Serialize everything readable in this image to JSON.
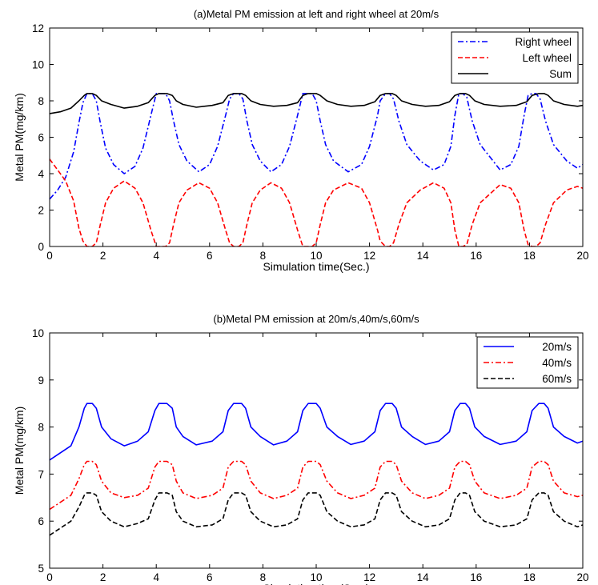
{
  "chart_data": [
    {
      "type": "line",
      "title": "(a)Metal PM emission at left and right wheel at 20m/s",
      "xlabel": "Simulation time(Sec.)",
      "ylabel": "Metal PM(mg/km)",
      "xlim": [
        0,
        20
      ],
      "ylim": [
        0,
        12
      ],
      "xticks": [
        0,
        2,
        4,
        6,
        8,
        10,
        12,
        14,
        16,
        18,
        20
      ],
      "yticks": [
        0,
        2,
        4,
        6,
        8,
        10,
        12
      ],
      "grid": false,
      "legend_position": "top-right",
      "period": 2.75,
      "series": [
        {
          "name": "Right wheel",
          "color": "#0000ff",
          "style": "dash-dot",
          "x": [
            0,
            0.3,
            0.6,
            0.9,
            1.1,
            1.25,
            1.4,
            1.6,
            1.75,
            1.9,
            2.1,
            2.4,
            2.8,
            3.2,
            3.5,
            3.8,
            4.0,
            4.15,
            4.35,
            4.5,
            4.65,
            4.85,
            5.15,
            5.6,
            6.0,
            6.3,
            6.6,
            6.75,
            6.9,
            7.1,
            7.25,
            7.4,
            7.6,
            7.9,
            8.3,
            8.7,
            9.0,
            9.3,
            9.5,
            9.65,
            9.85,
            10.0,
            10.15,
            10.35,
            10.65,
            11.2,
            11.7,
            12.0,
            12.3,
            12.4,
            12.6,
            12.75,
            12.9,
            13.1,
            13.4,
            13.9,
            14.4,
            14.8,
            15.05,
            15.2,
            15.35,
            15.5,
            15.65,
            15.85,
            16.15,
            16.9,
            17.3,
            17.6,
            17.8,
            17.95,
            18.1,
            18.25,
            18.4,
            18.6,
            18.9,
            19.4,
            19.8,
            20.0
          ],
          "y": [
            2.6,
            3.1,
            3.8,
            5.2,
            6.8,
            7.9,
            8.4,
            8.4,
            8.0,
            6.8,
            5.4,
            4.5,
            4.0,
            4.4,
            5.4,
            7.2,
            8.4,
            8.4,
            8.4,
            8.0,
            6.9,
            5.6,
            4.7,
            4.1,
            4.5,
            5.5,
            7.2,
            8.1,
            8.4,
            8.4,
            8.1,
            6.9,
            5.6,
            4.7,
            4.1,
            4.5,
            5.5,
            7.2,
            8.4,
            8.4,
            8.4,
            8.0,
            6.9,
            5.6,
            4.7,
            4.1,
            4.5,
            5.5,
            7.2,
            8.0,
            8.4,
            8.4,
            8.1,
            6.9,
            5.6,
            4.7,
            4.2,
            4.5,
            5.5,
            7.2,
            8.4,
            8.4,
            8.2,
            6.9,
            5.6,
            4.2,
            4.5,
            5.5,
            7.2,
            8.3,
            8.4,
            8.4,
            8.1,
            6.9,
            5.6,
            4.7,
            4.3,
            4.5
          ]
        },
        {
          "name": "Left wheel",
          "color": "#ff0000",
          "style": "dashed",
          "x": [
            0,
            0.3,
            0.6,
            0.9,
            1.1,
            1.25,
            1.4,
            1.6,
            1.75,
            1.9,
            2.1,
            2.4,
            2.8,
            3.2,
            3.5,
            3.8,
            4.0,
            4.15,
            4.35,
            4.5,
            4.65,
            4.85,
            5.15,
            5.6,
            6.0,
            6.3,
            6.6,
            6.75,
            6.9,
            7.1,
            7.25,
            7.4,
            7.6,
            7.9,
            8.3,
            8.7,
            9.0,
            9.3,
            9.5,
            9.65,
            9.85,
            10.0,
            10.15,
            10.35,
            10.65,
            11.2,
            11.7,
            12.0,
            12.3,
            12.4,
            12.6,
            12.75,
            12.9,
            13.1,
            13.4,
            13.9,
            14.4,
            14.8,
            15.05,
            15.2,
            15.35,
            15.5,
            15.65,
            15.85,
            16.15,
            16.9,
            17.3,
            17.6,
            17.8,
            17.95,
            18.1,
            18.25,
            18.4,
            18.6,
            18.9,
            19.4,
            19.8,
            20.0
          ],
          "y": [
            4.8,
            4.2,
            3.6,
            2.5,
            1.0,
            0.3,
            0.0,
            0.0,
            0.2,
            1.2,
            2.4,
            3.2,
            3.6,
            3.2,
            2.4,
            0.9,
            0.0,
            0.0,
            0.0,
            0.2,
            1.2,
            2.4,
            3.1,
            3.5,
            3.2,
            2.4,
            0.9,
            0.2,
            0.0,
            0.0,
            0.2,
            1.2,
            2.4,
            3.1,
            3.5,
            3.2,
            2.4,
            0.9,
            0.0,
            0.0,
            0.0,
            0.2,
            1.2,
            2.4,
            3.1,
            3.5,
            3.2,
            2.4,
            0.9,
            0.3,
            0.0,
            0.0,
            0.2,
            1.2,
            2.4,
            3.1,
            3.5,
            3.2,
            2.4,
            0.9,
            0.0,
            0.0,
            0.1,
            1.2,
            2.4,
            3.4,
            3.2,
            2.4,
            0.9,
            0.1,
            0.0,
            0.0,
            0.2,
            1.2,
            2.4,
            3.1,
            3.3,
            3.2
          ]
        },
        {
          "name": "Sum",
          "color": "#000000",
          "style": "solid",
          "x": [
            0,
            0.4,
            0.8,
            1.1,
            1.3,
            1.4,
            1.6,
            1.75,
            1.95,
            2.3,
            2.8,
            3.3,
            3.7,
            3.95,
            4.1,
            4.4,
            4.6,
            4.75,
            5.0,
            5.5,
            6.1,
            6.5,
            6.7,
            6.9,
            7.2,
            7.35,
            7.55,
            7.9,
            8.4,
            8.9,
            9.3,
            9.5,
            9.7,
            10.0,
            10.15,
            10.4,
            10.8,
            11.3,
            11.8,
            12.2,
            12.4,
            12.6,
            12.85,
            13.0,
            13.2,
            13.6,
            14.1,
            14.6,
            15.0,
            15.2,
            15.4,
            15.6,
            15.75,
            15.95,
            16.3,
            16.9,
            17.5,
            17.9,
            18.1,
            18.35,
            18.55,
            18.7,
            18.9,
            19.3,
            19.8,
            20.0
          ],
          "y": [
            7.3,
            7.4,
            7.6,
            8.0,
            8.3,
            8.4,
            8.4,
            8.3,
            8.0,
            7.8,
            7.6,
            7.7,
            7.9,
            8.3,
            8.4,
            8.4,
            8.3,
            8.0,
            7.8,
            7.65,
            7.75,
            7.9,
            8.3,
            8.4,
            8.4,
            8.3,
            8.0,
            7.8,
            7.7,
            7.75,
            7.9,
            8.3,
            8.4,
            8.4,
            8.3,
            8.0,
            7.8,
            7.7,
            7.75,
            7.95,
            8.3,
            8.4,
            8.4,
            8.3,
            8.0,
            7.8,
            7.7,
            7.75,
            7.95,
            8.3,
            8.4,
            8.4,
            8.3,
            8.0,
            7.8,
            7.7,
            7.75,
            7.95,
            8.3,
            8.4,
            8.4,
            8.3,
            8.0,
            7.8,
            7.7,
            7.75
          ]
        }
      ]
    },
    {
      "type": "line",
      "title": "(b)Metal PM emission at 20m/s,40m/s,60m/s",
      "xlabel": "Simulation time(Sec.)",
      "ylabel": "Metal PM(mg/km)",
      "xlim": [
        0,
        20
      ],
      "ylim": [
        5,
        10
      ],
      "xticks": [
        0,
        2,
        4,
        6,
        8,
        10,
        12,
        14,
        16,
        18,
        20
      ],
      "yticks": [
        5,
        6,
        7,
        8,
        9,
        10
      ],
      "grid": false,
      "legend_position": "top-right",
      "series": [
        {
          "name": "20m/s",
          "color": "#0000ff",
          "style": "solid",
          "x": [
            0,
            0.4,
            0.8,
            1.1,
            1.3,
            1.4,
            1.6,
            1.75,
            1.95,
            2.3,
            2.8,
            3.3,
            3.7,
            3.95,
            4.1,
            4.4,
            4.6,
            4.75,
            5.0,
            5.5,
            6.1,
            6.5,
            6.7,
            6.9,
            7.2,
            7.35,
            7.55,
            7.9,
            8.4,
            8.9,
            9.3,
            9.5,
            9.7,
            10.0,
            10.15,
            10.4,
            10.8,
            11.3,
            11.8,
            12.2,
            12.4,
            12.6,
            12.85,
            13.0,
            13.2,
            13.6,
            14.1,
            14.6,
            15.0,
            15.2,
            15.4,
            15.6,
            15.75,
            15.95,
            16.3,
            16.9,
            17.5,
            17.9,
            18.1,
            18.35,
            18.55,
            18.7,
            18.9,
            19.3,
            19.8,
            20.0
          ],
          "y": [
            7.3,
            7.45,
            7.6,
            8.0,
            8.4,
            8.5,
            8.5,
            8.4,
            8.0,
            7.75,
            7.6,
            7.7,
            7.9,
            8.35,
            8.5,
            8.5,
            8.4,
            8.0,
            7.8,
            7.62,
            7.7,
            7.9,
            8.35,
            8.5,
            8.5,
            8.4,
            8.0,
            7.8,
            7.62,
            7.7,
            7.9,
            8.35,
            8.5,
            8.5,
            8.4,
            8.0,
            7.8,
            7.63,
            7.7,
            7.9,
            8.35,
            8.5,
            8.5,
            8.4,
            8.0,
            7.8,
            7.63,
            7.7,
            7.9,
            8.35,
            8.5,
            8.5,
            8.4,
            8.0,
            7.8,
            7.63,
            7.7,
            7.9,
            8.35,
            8.5,
            8.5,
            8.4,
            8.0,
            7.8,
            7.66,
            7.7
          ]
        },
        {
          "name": "40m/s",
          "color": "#ff0000",
          "style": "dash-dot",
          "x": [
            0,
            0.4,
            0.8,
            1.1,
            1.3,
            1.4,
            1.6,
            1.75,
            1.95,
            2.3,
            2.8,
            3.3,
            3.7,
            3.95,
            4.1,
            4.4,
            4.6,
            4.75,
            5.0,
            5.5,
            6.1,
            6.5,
            6.7,
            6.9,
            7.2,
            7.35,
            7.55,
            7.9,
            8.4,
            8.9,
            9.3,
            9.5,
            9.7,
            10.0,
            10.15,
            10.4,
            10.8,
            11.3,
            11.8,
            12.2,
            12.4,
            12.6,
            12.85,
            13.0,
            13.2,
            13.6,
            14.1,
            14.6,
            15.0,
            15.2,
            15.4,
            15.6,
            15.75,
            15.95,
            16.3,
            16.9,
            17.5,
            17.9,
            18.1,
            18.35,
            18.55,
            18.7,
            18.9,
            19.3,
            19.8,
            20.0
          ],
          "y": [
            6.25,
            6.4,
            6.55,
            6.9,
            7.2,
            7.27,
            7.27,
            7.2,
            6.85,
            6.6,
            6.5,
            6.55,
            6.7,
            7.15,
            7.27,
            7.27,
            7.2,
            6.85,
            6.6,
            6.48,
            6.55,
            6.7,
            7.15,
            7.27,
            7.27,
            7.2,
            6.85,
            6.6,
            6.48,
            6.55,
            6.7,
            7.15,
            7.27,
            7.27,
            7.2,
            6.85,
            6.6,
            6.48,
            6.55,
            6.7,
            7.15,
            7.27,
            7.27,
            7.2,
            6.85,
            6.6,
            6.48,
            6.55,
            6.7,
            7.15,
            7.27,
            7.27,
            7.2,
            6.85,
            6.6,
            6.48,
            6.55,
            6.7,
            7.15,
            7.27,
            7.27,
            7.2,
            6.85,
            6.6,
            6.52,
            6.55
          ]
        },
        {
          "name": "60m/s",
          "color": "#000000",
          "style": "dashed",
          "x": [
            0,
            0.4,
            0.8,
            1.1,
            1.3,
            1.4,
            1.6,
            1.75,
            1.95,
            2.3,
            2.8,
            3.3,
            3.7,
            3.95,
            4.1,
            4.4,
            4.6,
            4.75,
            5.0,
            5.5,
            6.1,
            6.5,
            6.7,
            6.9,
            7.2,
            7.35,
            7.55,
            7.9,
            8.4,
            8.9,
            9.3,
            9.5,
            9.7,
            10.0,
            10.15,
            10.4,
            10.8,
            11.3,
            11.8,
            12.2,
            12.4,
            12.6,
            12.85,
            13.0,
            13.2,
            13.6,
            14.1,
            14.6,
            15.0,
            15.2,
            15.4,
            15.6,
            15.75,
            15.95,
            16.3,
            16.9,
            17.5,
            17.9,
            18.1,
            18.35,
            18.55,
            18.7,
            18.9,
            19.3,
            19.8,
            20.0
          ],
          "y": [
            5.7,
            5.85,
            6.0,
            6.3,
            6.55,
            6.6,
            6.6,
            6.55,
            6.2,
            6.0,
            5.88,
            5.95,
            6.05,
            6.45,
            6.6,
            6.6,
            6.55,
            6.2,
            6.0,
            5.88,
            5.92,
            6.05,
            6.45,
            6.6,
            6.6,
            6.55,
            6.2,
            6.0,
            5.88,
            5.92,
            6.05,
            6.45,
            6.6,
            6.6,
            6.55,
            6.2,
            6.0,
            5.88,
            5.92,
            6.05,
            6.45,
            6.6,
            6.6,
            6.55,
            6.2,
            6.0,
            5.88,
            5.92,
            6.05,
            6.45,
            6.6,
            6.6,
            6.55,
            6.2,
            6.0,
            5.88,
            5.92,
            6.05,
            6.45,
            6.6,
            6.6,
            6.55,
            6.2,
            6.0,
            5.88,
            5.92
          ]
        }
      ]
    }
  ]
}
